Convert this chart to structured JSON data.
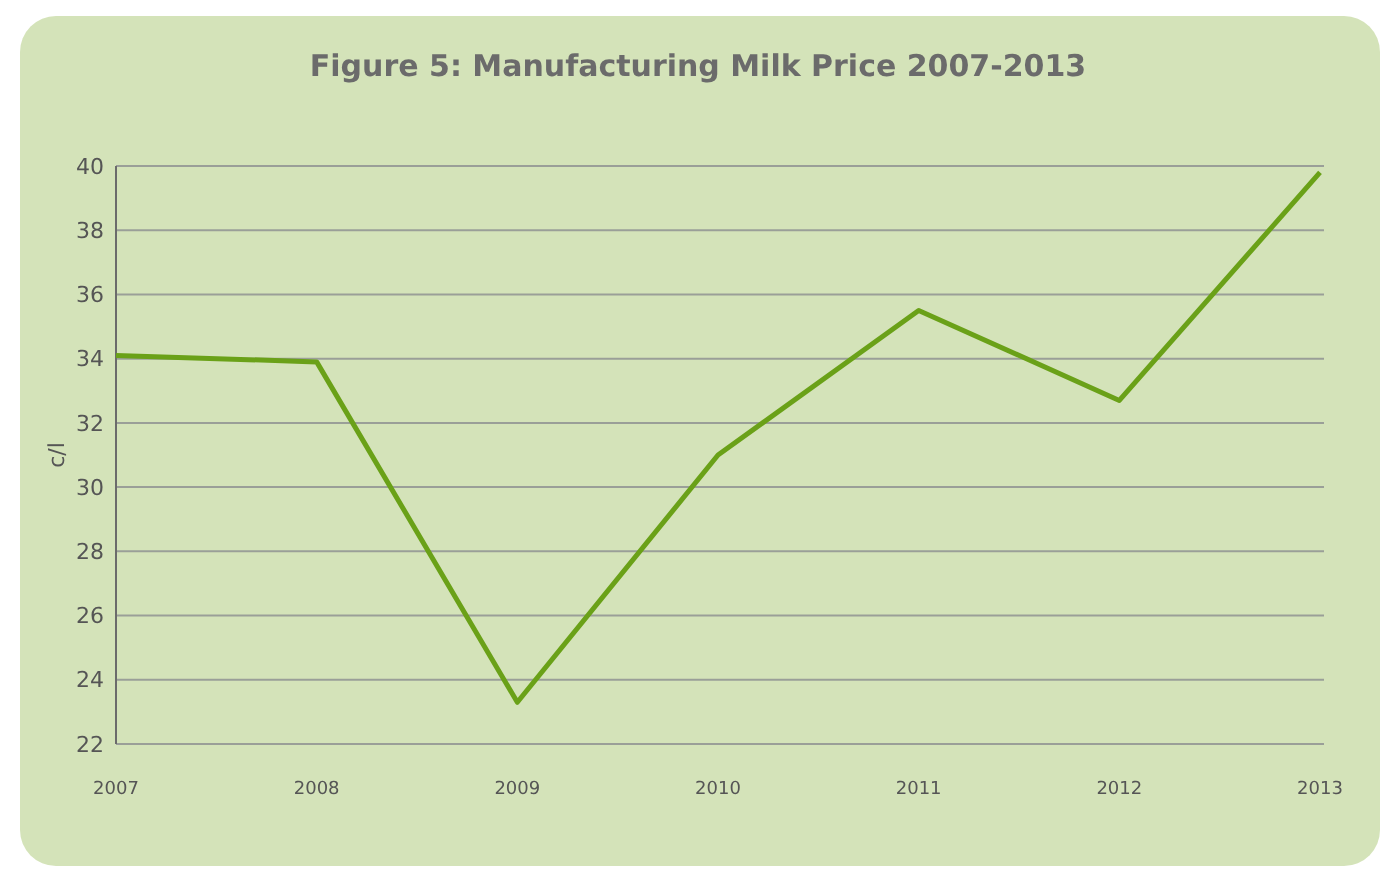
{
  "chart_data": {
    "type": "line",
    "title": "Figure 5: Manufacturing Milk Price 2007-2013",
    "ylabel": "c/l",
    "categories": [
      "2007",
      "2008",
      "2009",
      "2010",
      "2011",
      "2012",
      "2013"
    ],
    "series": [
      {
        "color": "#6aa118",
        "values": [
          34.1,
          33.9,
          23.3,
          31.0,
          35.5,
          32.7,
          39.8
        ]
      }
    ],
    "ylim": [
      22,
      40
    ],
    "yticks": [
      22,
      24,
      26,
      28,
      30,
      32,
      34,
      36,
      38,
      40
    ],
    "grid": "y",
    "marker": "none",
    "line_style": "solid"
  }
}
